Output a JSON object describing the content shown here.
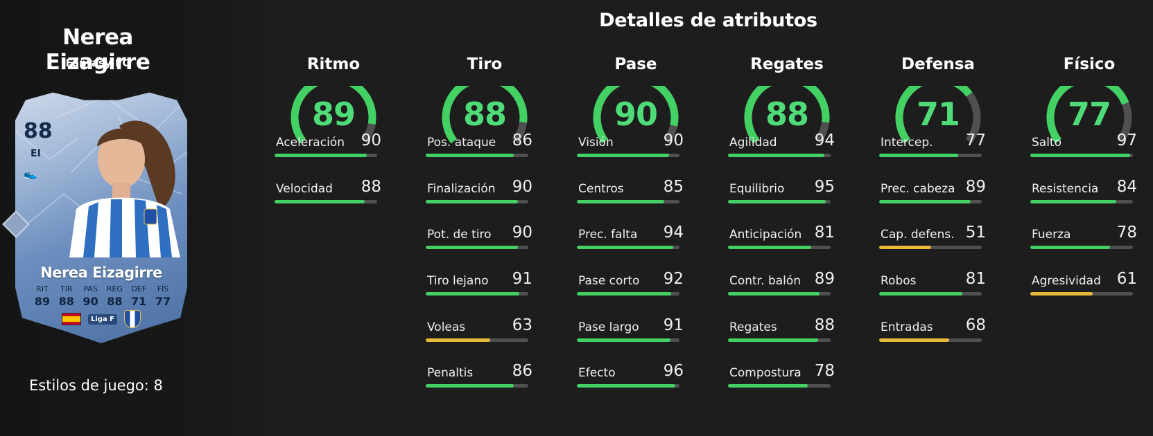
{
  "player": {
    "name": "Nerea Eizagirre",
    "club": "Fantasy FC",
    "playstyles_label": "Estilos de juego: 8"
  },
  "card": {
    "rating": "88",
    "position": "EI",
    "name": "Nerea Eizagirre",
    "league_label": "Liga F",
    "stats": [
      {
        "label": "RIT",
        "value": "89"
      },
      {
        "label": "TIR",
        "value": "88"
      },
      {
        "label": "PAS",
        "value": "90"
      },
      {
        "label": "REG",
        "value": "88"
      },
      {
        "label": "DEF",
        "value": "71"
      },
      {
        "label": "FÍS",
        "value": "77"
      }
    ]
  },
  "page": {
    "title": "Detalles de atributos"
  },
  "colors": {
    "high": "#43d163",
    "mid": "#e8b93a",
    "gauge_track": "#4f504f"
  },
  "categories": [
    {
      "name": "Ritmo",
      "value": 89,
      "attributes": [
        {
          "name": "Aceleración",
          "value": 90
        },
        {
          "name": "Velocidad",
          "value": 88
        }
      ]
    },
    {
      "name": "Tiro",
      "value": 88,
      "attributes": [
        {
          "name": "Pos. ataque",
          "value": 86
        },
        {
          "name": "Finalización",
          "value": 90
        },
        {
          "name": "Pot. de tiro",
          "value": 90
        },
        {
          "name": "Tiro lejano",
          "value": 91
        },
        {
          "name": "Voleas",
          "value": 63
        },
        {
          "name": "Penaltis",
          "value": 86
        }
      ]
    },
    {
      "name": "Pase",
      "value": 90,
      "attributes": [
        {
          "name": "Visión",
          "value": 90
        },
        {
          "name": "Centros",
          "value": 85
        },
        {
          "name": "Prec. falta",
          "value": 94
        },
        {
          "name": "Pase corto",
          "value": 92
        },
        {
          "name": "Pase largo",
          "value": 91
        },
        {
          "name": "Efecto",
          "value": 96
        }
      ]
    },
    {
      "name": "Regates",
      "value": 88,
      "attributes": [
        {
          "name": "Agilidad",
          "value": 94
        },
        {
          "name": "Equilibrio",
          "value": 95
        },
        {
          "name": "Anticipación",
          "value": 81
        },
        {
          "name": "Contr. balón",
          "value": 89
        },
        {
          "name": "Regates",
          "value": 88
        },
        {
          "name": "Compostura",
          "value": 78
        }
      ]
    },
    {
      "name": "Defensa",
      "value": 71,
      "attributes": [
        {
          "name": "Intercep.",
          "value": 77
        },
        {
          "name": "Prec. cabeza",
          "value": 89
        },
        {
          "name": "Cap. defens.",
          "value": 51
        },
        {
          "name": "Robos",
          "value": 81
        },
        {
          "name": "Entradas",
          "value": 68
        }
      ]
    },
    {
      "name": "Físico",
      "value": 77,
      "attributes": [
        {
          "name": "Salto",
          "value": 97
        },
        {
          "name": "Resistencia",
          "value": 84
        },
        {
          "name": "Fuerza",
          "value": 78
        },
        {
          "name": "Agresividad",
          "value": 61
        }
      ]
    }
  ]
}
